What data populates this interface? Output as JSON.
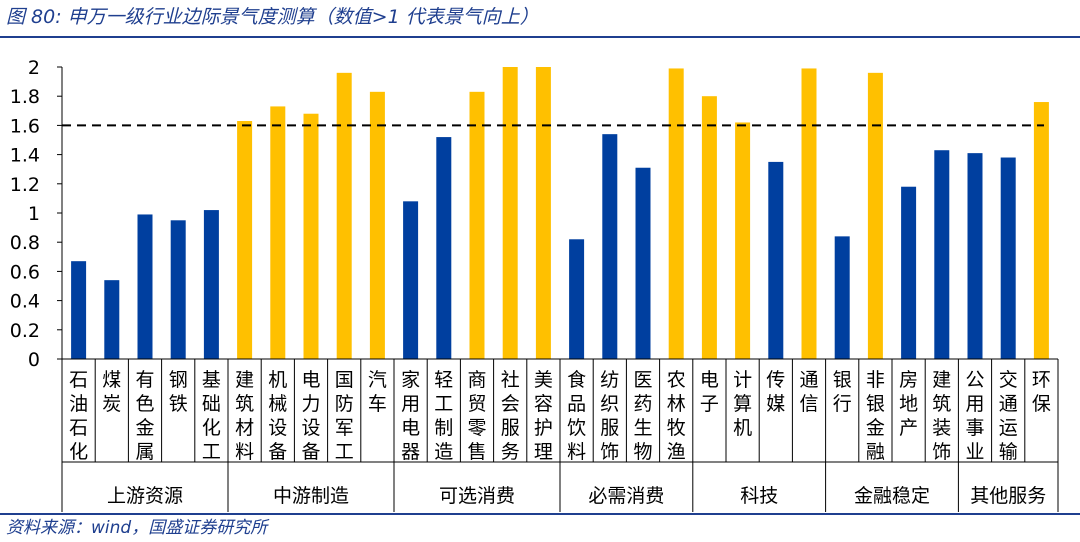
{
  "header": {
    "title": "图 80:  申万一级行业边际景气度测算（数值>1 代表景气向上）"
  },
  "footer": {
    "source": "资料来源：wind，国盛证券研究所"
  },
  "colors": {
    "blue": "#003f9f",
    "gold": "#ffc000",
    "title": "#1f3f8f"
  },
  "chart_data": {
    "type": "bar",
    "title": "申万一级行业边际景气度测算（数值>1 代表景气向上）",
    "ylim": [
      0,
      2
    ],
    "yticks": [
      "0",
      "0.2",
      "0.4",
      "0.6",
      "0.8",
      "1",
      "1.2",
      "1.4",
      "1.6",
      "1.8",
      "2"
    ],
    "threshold": 1.6,
    "categories": [
      "石油石化",
      "煤炭",
      "有色金属",
      "钢铁",
      "基础化工",
      "建筑材料",
      "机械设备",
      "电力设备",
      "国防军工",
      "汽车",
      "家用电器",
      "轻工制造",
      "商贸零售",
      "社会服务",
      "美容护理",
      "食品饮料",
      "纺织服饰",
      "医药生物",
      "农林牧渔",
      "电子",
      "计算机",
      "传媒",
      "通信",
      "银行",
      "非银金融",
      "房地产",
      "建筑装饰",
      "公用事业",
      "交通运输",
      "环保"
    ],
    "values": [
      0.67,
      0.54,
      0.99,
      0.95,
      1.02,
      1.63,
      1.73,
      1.68,
      1.96,
      1.83,
      1.08,
      1.52,
      1.83,
      2.0,
      2.0,
      0.82,
      1.54,
      1.31,
      1.99,
      1.8,
      1.62,
      1.35,
      1.99,
      0.84,
      1.96,
      1.18,
      1.43,
      1.41,
      1.38,
      1.76
    ],
    "groups": [
      {
        "name": "上游资源",
        "count": 5
      },
      {
        "name": "中游制造",
        "count": 5
      },
      {
        "name": "可选消费",
        "count": 5
      },
      {
        "name": "必需消费",
        "count": 4
      },
      {
        "name": "科技",
        "count": 4
      },
      {
        "name": "金融稳定",
        "count": 4
      },
      {
        "name": "其他服务",
        "count": 3
      }
    ]
  }
}
